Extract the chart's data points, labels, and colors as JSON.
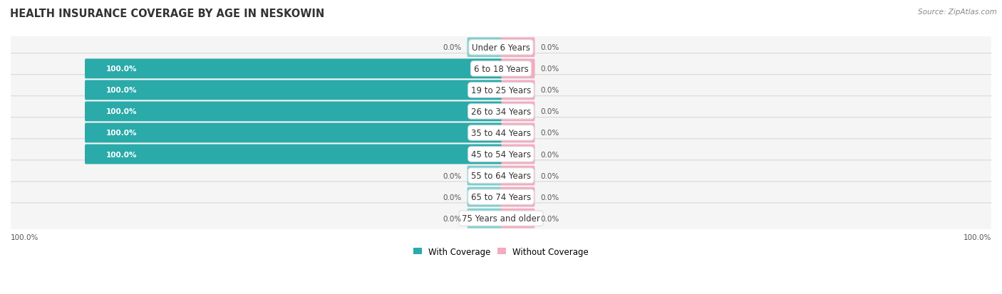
{
  "title": "HEALTH INSURANCE COVERAGE BY AGE IN NESKOWIN",
  "source": "Source: ZipAtlas.com",
  "categories": [
    "Under 6 Years",
    "6 to 18 Years",
    "19 to 25 Years",
    "26 to 34 Years",
    "35 to 44 Years",
    "45 to 54 Years",
    "55 to 64 Years",
    "65 to 74 Years",
    "75 Years and older"
  ],
  "with_coverage": [
    0.0,
    100.0,
    100.0,
    100.0,
    100.0,
    100.0,
    0.0,
    0.0,
    0.0
  ],
  "without_coverage": [
    0.0,
    0.0,
    0.0,
    0.0,
    0.0,
    0.0,
    0.0,
    0.0,
    0.0
  ],
  "color_with_full": "#2BAAAA",
  "color_with_light": "#7DCFCF",
  "color_without_full": "#F07090",
  "color_without_light": "#F4AABF",
  "legend_with": "With Coverage",
  "legend_without": "Without Coverage",
  "figsize": [
    14.06,
    4.14
  ],
  "dpi": 100
}
